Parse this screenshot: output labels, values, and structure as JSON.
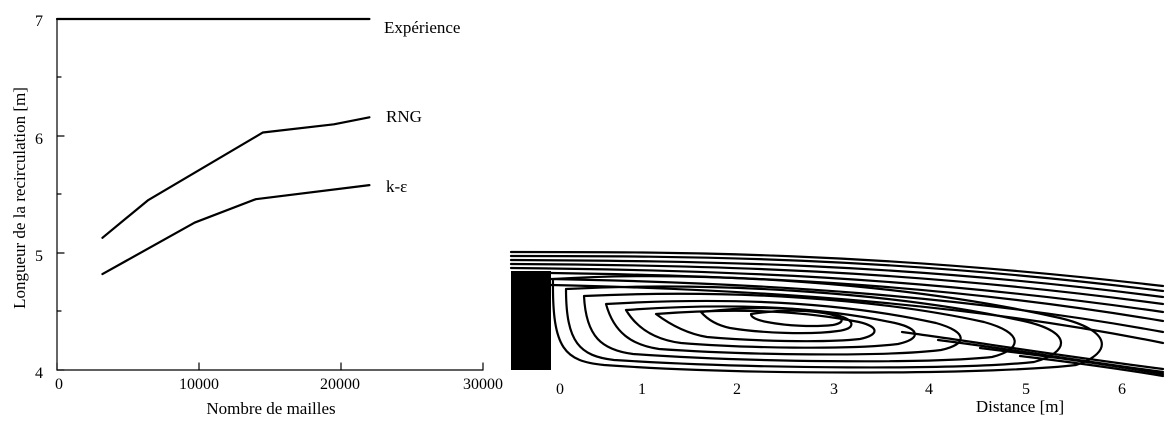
{
  "chart_data": [
    {
      "type": "line",
      "xlabel": "Nombre de mailles",
      "ylabel": "Longueur de la recirculation [m]",
      "xlim": [
        0,
        30000
      ],
      "ylim": [
        4,
        7
      ],
      "xticks": [
        "0",
        "10000",
        "20000",
        "30000"
      ],
      "yticks": [
        "4",
        "5",
        "6",
        "7"
      ],
      "grid": false,
      "series": [
        {
          "name": "Expérience",
          "x": [
            0,
            22000
          ],
          "values": [
            7.0,
            7.0
          ]
        },
        {
          "name": "RNG",
          "x": [
            3200,
            6400,
            14500,
            19500,
            22000
          ],
          "values": [
            5.13,
            5.45,
            6.03,
            6.1,
            6.16
          ]
        },
        {
          "name": "k-ε",
          "x": [
            3200,
            9700,
            14000,
            22000
          ],
          "values": [
            4.82,
            5.26,
            5.46,
            5.58
          ]
        }
      ]
    },
    {
      "type": "line",
      "xlabel": "Distance [m]",
      "xlim": [
        -0.5,
        6.5
      ],
      "xticks": [
        "0",
        "1",
        "2",
        "3",
        "4",
        "5",
        "6"
      ],
      "annotations": [
        "streamline recirculation pattern"
      ]
    }
  ],
  "colors": {
    "ink": "#000000",
    "background": "#ffffff"
  }
}
